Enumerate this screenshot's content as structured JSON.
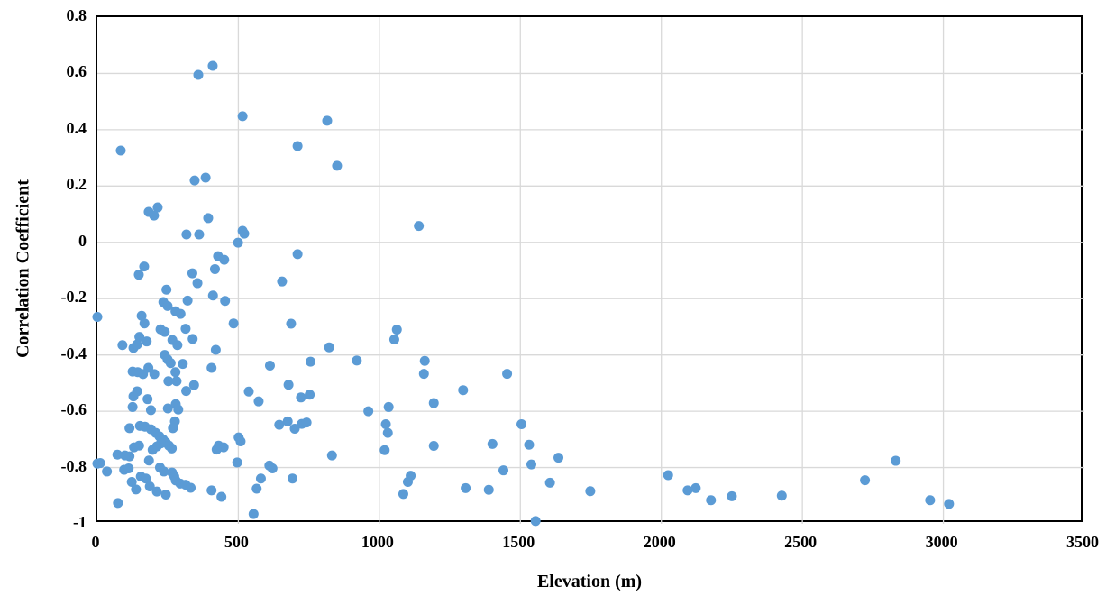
{
  "chart_data": {
    "type": "scatter",
    "title": "",
    "xlabel": "Elevation (m)",
    "ylabel": "Correlation Coefficient",
    "xlim": [
      0,
      3500
    ],
    "ylim": [
      -1,
      0.8
    ],
    "x_ticks": [
      0,
      500,
      1000,
      1500,
      2000,
      2500,
      3000,
      3500
    ],
    "x_tick_labels": [
      "0",
      "500",
      "1000",
      "1500",
      "2000",
      "2500",
      "3000",
      "3500"
    ],
    "y_ticks": [
      0.8,
      0.6,
      0.4,
      0.2,
      0,
      -0.2,
      -0.4,
      -0.6,
      -0.8,
      -1
    ],
    "y_tick_labels": [
      "0.8",
      "0.6",
      "0.4",
      "0.2",
      "0",
      "-0.2",
      "-0.4",
      "-0.6",
      "-0.8",
      "-1"
    ],
    "grid": true,
    "legend": "none",
    "colors": {
      "marker": "#5B9BD5",
      "gridline": "#D9D9D9",
      "axis_border": "#000000",
      "background": "#FFFFFF"
    },
    "marker_radius_px": 5.5,
    "points": [
      [
        83,
        0.326
      ],
      [
        358,
        0.595
      ],
      [
        409,
        0.627
      ],
      [
        515,
        0.448
      ],
      [
        815,
        0.432
      ],
      [
        710,
        0.342
      ],
      [
        850,
        0.272
      ],
      [
        345,
        0.22
      ],
      [
        384,
        0.23
      ],
      [
        182,
        0.108
      ],
      [
        201,
        0.095
      ],
      [
        214,
        0.124
      ],
      [
        393,
        0.086
      ],
      [
        316,
        0.028
      ],
      [
        361,
        0.028
      ],
      [
        515,
        0.041
      ],
      [
        521,
        0.031
      ],
      [
        499,
        -0.001
      ],
      [
        1140,
        0.058
      ],
      [
        710,
        -0.042
      ],
      [
        428,
        -0.049
      ],
      [
        450,
        -0.062
      ],
      [
        166,
        -0.086
      ],
      [
        147,
        -0.115
      ],
      [
        417,
        -0.095
      ],
      [
        337,
        -0.11
      ],
      [
        655,
        -0.139
      ],
      [
        355,
        -0.145
      ],
      [
        245,
        -0.168
      ],
      [
        410,
        -0.189
      ],
      [
        453,
        -0.208
      ],
      [
        234,
        -0.212
      ],
      [
        249,
        -0.226
      ],
      [
        277,
        -0.245
      ],
      [
        295,
        -0.254
      ],
      [
        320,
        -0.207
      ],
      [
        157,
        -0.261
      ],
      [
        167,
        -0.288
      ],
      [
        224,
        -0.309
      ],
      [
        239,
        -0.318
      ],
      [
        313,
        -0.307
      ],
      [
        149,
        -0.336
      ],
      [
        175,
        -0.352
      ],
      [
        89,
        -0.365
      ],
      [
        128,
        -0.375
      ],
      [
        141,
        -0.363
      ],
      [
        266,
        -0.347
      ],
      [
        284,
        -0.365
      ],
      [
        338,
        -0.343
      ],
      [
        483,
        -0.288
      ],
      [
        687,
        -0.289
      ],
      [
        0,
        -0.265
      ],
      [
        1062,
        -0.31
      ],
      [
        1053,
        -0.345
      ],
      [
        822,
        -0.373
      ],
      [
        420,
        -0.382
      ],
      [
        239,
        -0.4
      ],
      [
        249,
        -0.416
      ],
      [
        260,
        -0.429
      ],
      [
        303,
        -0.432
      ],
      [
        405,
        -0.446
      ],
      [
        181,
        -0.446
      ],
      [
        125,
        -0.459
      ],
      [
        143,
        -0.461
      ],
      [
        162,
        -0.468
      ],
      [
        202,
        -0.468
      ],
      [
        277,
        -0.461
      ],
      [
        252,
        -0.493
      ],
      [
        281,
        -0.493
      ],
      [
        343,
        -0.507
      ],
      [
        612,
        -0.438
      ],
      [
        756,
        -0.424
      ],
      [
        920,
        -0.42
      ],
      [
        1161,
        -0.421
      ],
      [
        1158,
        -0.467
      ],
      [
        1453,
        -0.467
      ],
      [
        141,
        -0.529
      ],
      [
        128,
        -0.547
      ],
      [
        125,
        -0.585
      ],
      [
        178,
        -0.557
      ],
      [
        190,
        -0.596
      ],
      [
        250,
        -0.59
      ],
      [
        278,
        -0.575
      ],
      [
        315,
        -0.528
      ],
      [
        287,
        -0.594
      ],
      [
        537,
        -0.53
      ],
      [
        572,
        -0.565
      ],
      [
        722,
        -0.551
      ],
      [
        753,
        -0.541
      ],
      [
        678,
        -0.506
      ],
      [
        1297,
        -0.525
      ],
      [
        1193,
        -0.571
      ],
      [
        1033,
        -0.585
      ],
      [
        961,
        -0.6
      ],
      [
        275,
        -0.636
      ],
      [
        268,
        -0.66
      ],
      [
        114,
        -0.66
      ],
      [
        151,
        -0.652
      ],
      [
        169,
        -0.655
      ],
      [
        190,
        -0.664
      ],
      [
        207,
        -0.677
      ],
      [
        220,
        -0.689
      ],
      [
        233,
        -0.7
      ],
      [
        243,
        -0.711
      ],
      [
        254,
        -0.722
      ],
      [
        264,
        -0.732
      ],
      [
        225,
        -0.714
      ],
      [
        211,
        -0.725
      ],
      [
        196,
        -0.737
      ],
      [
        183,
        -0.775
      ],
      [
        130,
        -0.728
      ],
      [
        148,
        -0.722
      ],
      [
        114,
        -0.76
      ],
      [
        98,
        -0.757
      ],
      [
        71,
        -0.754
      ],
      [
        10,
        -0.784
      ],
      [
        0,
        -0.786
      ],
      [
        430,
        -0.722
      ],
      [
        448,
        -0.728
      ],
      [
        423,
        -0.736
      ],
      [
        501,
        -0.693
      ],
      [
        508,
        -0.707
      ],
      [
        496,
        -0.782
      ],
      [
        610,
        -0.793
      ],
      [
        645,
        -0.648
      ],
      [
        675,
        -0.636
      ],
      [
        700,
        -0.662
      ],
      [
        725,
        -0.645
      ],
      [
        742,
        -0.64
      ],
      [
        832,
        -0.757
      ],
      [
        1023,
        -0.646
      ],
      [
        1030,
        -0.677
      ],
      [
        1019,
        -0.738
      ],
      [
        1193,
        -0.723
      ],
      [
        1401,
        -0.716
      ],
      [
        1504,
        -0.646
      ],
      [
        1531,
        -0.719
      ],
      [
        1539,
        -0.789
      ],
      [
        1635,
        -0.765
      ],
      [
        2831,
        -0.776
      ],
      [
        34,
        -0.814
      ],
      [
        95,
        -0.808
      ],
      [
        111,
        -0.803
      ],
      [
        222,
        -0.8
      ],
      [
        236,
        -0.814
      ],
      [
        265,
        -0.818
      ],
      [
        273,
        -0.832
      ],
      [
        278,
        -0.846
      ],
      [
        294,
        -0.857
      ],
      [
        313,
        -0.861
      ],
      [
        331,
        -0.872
      ],
      [
        122,
        -0.851
      ],
      [
        137,
        -0.878
      ],
      [
        154,
        -0.832
      ],
      [
        172,
        -0.839
      ],
      [
        186,
        -0.867
      ],
      [
        211,
        -0.885
      ],
      [
        243,
        -0.896
      ],
      [
        73,
        -0.926
      ],
      [
        405,
        -0.881
      ],
      [
        440,
        -0.904
      ],
      [
        621,
        -0.803
      ],
      [
        580,
        -0.839
      ],
      [
        565,
        -0.875
      ],
      [
        692,
        -0.839
      ],
      [
        554,
        -0.965
      ],
      [
        1111,
        -0.829
      ],
      [
        1101,
        -0.851
      ],
      [
        1085,
        -0.894
      ],
      [
        1306,
        -0.873
      ],
      [
        1388,
        -0.879
      ],
      [
        1440,
        -0.81
      ],
      [
        1605,
        -0.854
      ],
      [
        1554,
        -0.99
      ],
      [
        1748,
        -0.884
      ],
      [
        2024,
        -0.827
      ],
      [
        2093,
        -0.881
      ],
      [
        2122,
        -0.873
      ],
      [
        2176,
        -0.916
      ],
      [
        2250,
        -0.902
      ],
      [
        2427,
        -0.9
      ],
      [
        2722,
        -0.845
      ],
      [
        2953,
        -0.916
      ],
      [
        3020,
        -0.929
      ]
    ]
  }
}
